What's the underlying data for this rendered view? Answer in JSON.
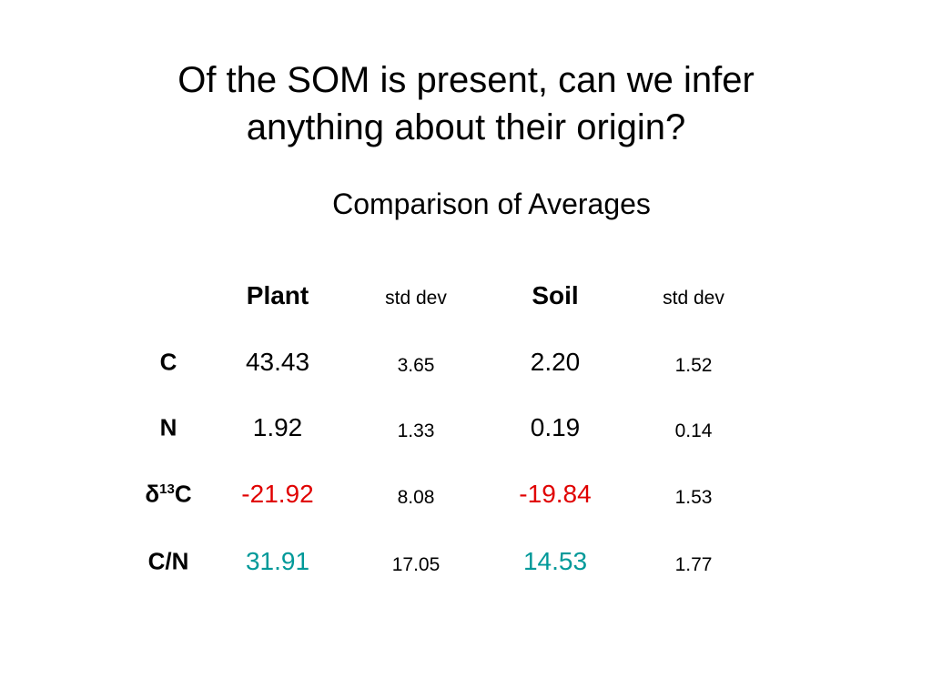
{
  "title": "Of the SOM is present, can we infer anything about their origin?",
  "subtitle": "Comparison of Averages",
  "table": {
    "header": [
      "Plant",
      "std dev",
      "Soil",
      "std dev"
    ],
    "rows": [
      [
        "C",
        "43.43",
        "3.65",
        "2.20",
        "1.52"
      ],
      [
        "N",
        "1.92",
        "1.33",
        "0.19",
        "0.14"
      ],
      [
        [
          "δ",
          "13",
          "C"
        ],
        "-21.92",
        "8.08",
        "-19.84",
        "1.53"
      ],
      [
        "C/N",
        "31.91",
        "17.05",
        "14.53",
        "1.77"
      ]
    ]
  }
}
